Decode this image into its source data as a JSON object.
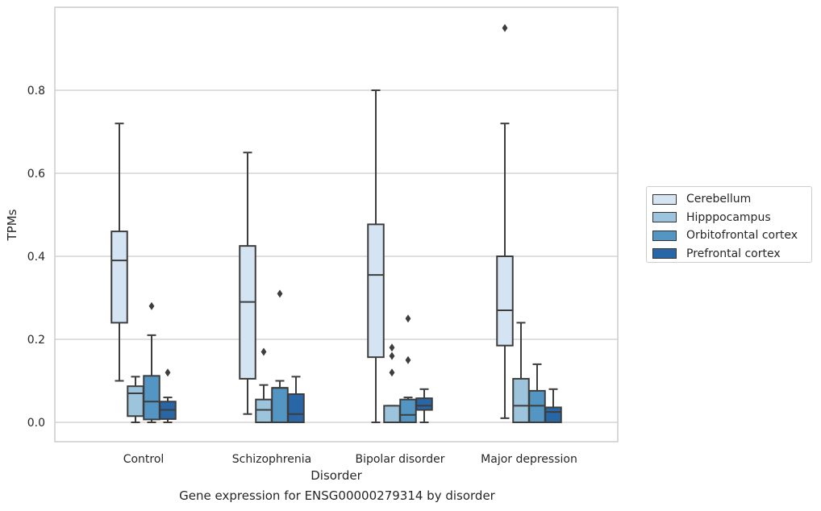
{
  "chart_data": {
    "type": "box",
    "title": "",
    "xlabel": "Disorder",
    "ylabel": "TPMs",
    "caption": "Gene expression for ENSG00000279314 by disorder",
    "ylim": [
      -0.045,
      0.99
    ],
    "yticks": [
      0.0,
      0.2,
      0.4,
      0.6,
      0.8
    ],
    "ytick_labels": [
      "0.0",
      "0.2",
      "0.4",
      "0.6",
      "0.8"
    ],
    "categories": [
      "Control",
      "Schizophrenia",
      "Bipolar disorder",
      "Major depression"
    ],
    "grid": "horizontal",
    "legend_position": "right, outside",
    "series": [
      {
        "name": "Cerebellum",
        "color": "#d5e4f2",
        "boxes": [
          {
            "whisker_low": 0.1,
            "q1": 0.24,
            "median": 0.39,
            "q3": 0.46,
            "whisker_high": 0.72,
            "outliers": []
          },
          {
            "whisker_low": 0.02,
            "q1": 0.105,
            "median": 0.29,
            "q3": 0.425,
            "whisker_high": 0.65,
            "outliers": []
          },
          {
            "whisker_low": 0.0,
            "q1": 0.157,
            "median": 0.355,
            "q3": 0.477,
            "whisker_high": 0.8,
            "outliers": []
          },
          {
            "whisker_low": 0.01,
            "q1": 0.185,
            "median": 0.27,
            "q3": 0.4,
            "whisker_high": 0.72,
            "outliers": [
              0.95
            ]
          }
        ]
      },
      {
        "name": "Hipppocampus",
        "color": "#9dc4dd",
        "boxes": [
          {
            "whisker_low": 0.0,
            "q1": 0.015,
            "median": 0.07,
            "q3": 0.087,
            "whisker_high": 0.11,
            "outliers": []
          },
          {
            "whisker_low": 0.0,
            "q1": 0.0,
            "median": 0.03,
            "q3": 0.055,
            "whisker_high": 0.09,
            "outliers": [
              0.17
            ]
          },
          {
            "whisker_low": 0.0,
            "q1": 0.0,
            "median": 0.0,
            "q3": 0.04,
            "whisker_high": 0.04,
            "outliers": [
              0.12,
              0.16,
              0.18
            ]
          },
          {
            "whisker_low": 0.0,
            "q1": 0.0,
            "median": 0.04,
            "q3": 0.105,
            "whisker_high": 0.24,
            "outliers": []
          }
        ]
      },
      {
        "name": "Orbitofrontal cortex",
        "color": "#5396c3",
        "boxes": [
          {
            "whisker_low": 0.0,
            "q1": 0.007,
            "median": 0.05,
            "q3": 0.112,
            "whisker_high": 0.21,
            "outliers": [
              0.28
            ]
          },
          {
            "whisker_low": 0.0,
            "q1": 0.0,
            "median": 0.083,
            "q3": 0.083,
            "whisker_high": 0.1,
            "outliers": [
              0.31
            ]
          },
          {
            "whisker_low": 0.0,
            "q1": 0.0,
            "median": 0.018,
            "q3": 0.055,
            "whisker_high": 0.06,
            "outliers": [
              0.15,
              0.25
            ]
          },
          {
            "whisker_low": 0.0,
            "q1": 0.0,
            "median": 0.04,
            "q3": 0.076,
            "whisker_high": 0.14,
            "outliers": []
          }
        ]
      },
      {
        "name": "Prefrontal cortex",
        "color": "#2966a5",
        "boxes": [
          {
            "whisker_low": 0.0,
            "q1": 0.008,
            "median": 0.03,
            "q3": 0.05,
            "whisker_high": 0.06,
            "outliers": [
              0.12
            ]
          },
          {
            "whisker_low": 0.0,
            "q1": 0.0,
            "median": 0.02,
            "q3": 0.068,
            "whisker_high": 0.11,
            "outliers": []
          },
          {
            "whisker_low": 0.0,
            "q1": 0.03,
            "median": 0.04,
            "q3": 0.058,
            "whisker_high": 0.08,
            "outliers": []
          },
          {
            "whisker_low": 0.0,
            "q1": 0.0,
            "median": 0.025,
            "q3": 0.036,
            "whisker_high": 0.08,
            "outliers": []
          }
        ]
      }
    ]
  }
}
